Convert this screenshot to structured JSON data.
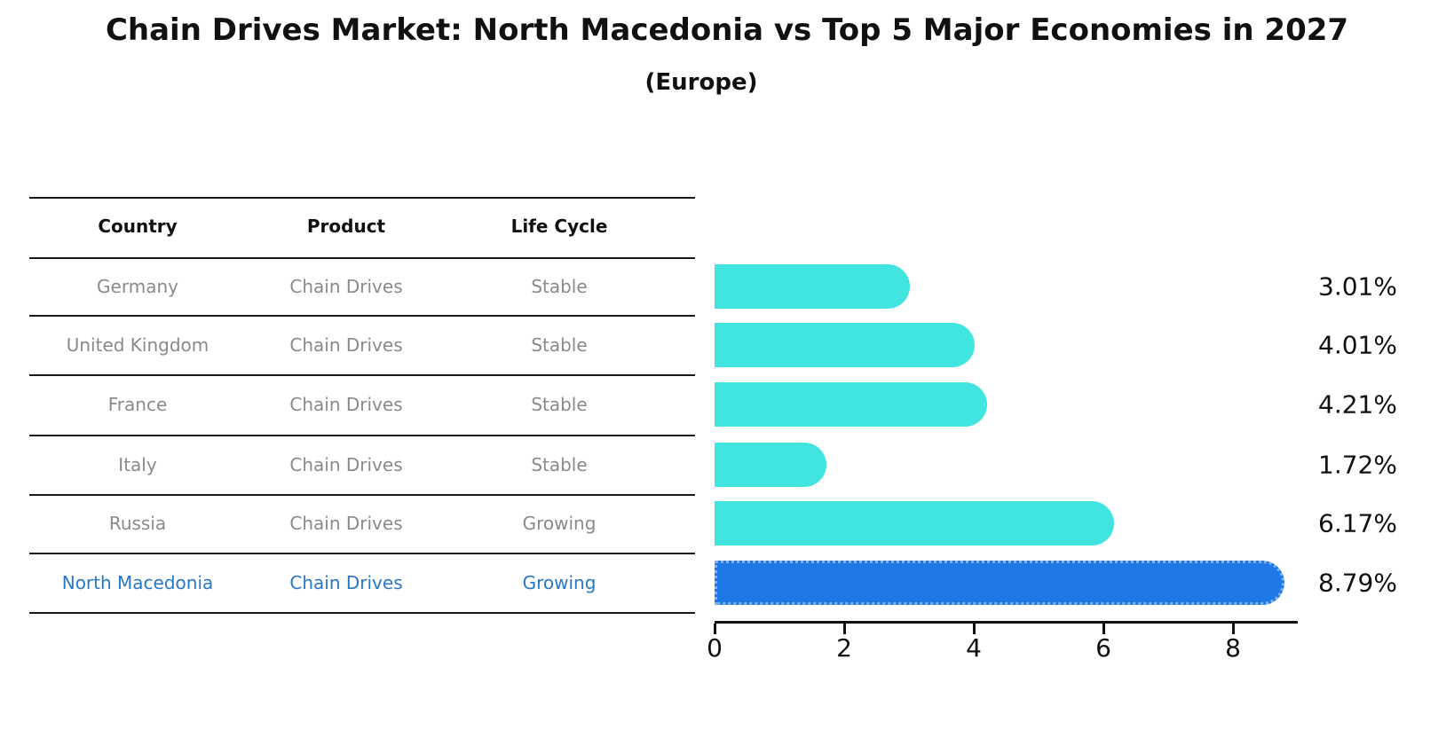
{
  "title": "Chain Drives Market: North Macedonia vs Top 5 Major Economies in 2027",
  "subtitle": "(Europe)",
  "table": {
    "headers": [
      "Country",
      "Product",
      "Life Cycle"
    ],
    "rows": [
      {
        "country": "Germany",
        "product": "Chain Drives",
        "life_cycle": "Stable",
        "highlight": false
      },
      {
        "country": "United Kingdom",
        "product": "Chain Drives",
        "life_cycle": "Stable",
        "highlight": false
      },
      {
        "country": "France",
        "product": "Chain Drives",
        "life_cycle": "Stable",
        "highlight": false
      },
      {
        "country": "Italy",
        "product": "Chain Drives",
        "life_cycle": "Stable",
        "highlight": false
      },
      {
        "country": "Russia",
        "product": "Chain Drives",
        "life_cycle": "Growing",
        "highlight": false
      },
      {
        "country": "North Macedonia",
        "product": "Chain Drives",
        "life_cycle": "Growing",
        "highlight": true
      }
    ]
  },
  "chart_data": {
    "type": "bar",
    "orientation": "horizontal",
    "categories": [
      "Germany",
      "United Kingdom",
      "France",
      "Italy",
      "Russia",
      "North Macedonia"
    ],
    "values": [
      3.01,
      4.01,
      4.21,
      1.72,
      6.17,
      8.79
    ],
    "value_labels": [
      "3.01%",
      "4.01%",
      "4.21%",
      "1.72%",
      "6.17%",
      "8.79%"
    ],
    "xticks": [
      "0",
      "2",
      "4",
      "6",
      "8"
    ],
    "xlim": [
      0,
      9
    ],
    "grid": false,
    "legend": false,
    "bar_color": "#40E5E0",
    "highlight_color": "#1E78E8",
    "highlight_index": 5
  },
  "colors": {
    "bar_cyan": "#40E5E0",
    "bar_blue": "#1E78E8",
    "highlight_text": "#2878C8",
    "muted_text": "#8a8a8a",
    "line": "#1a1a1a"
  }
}
